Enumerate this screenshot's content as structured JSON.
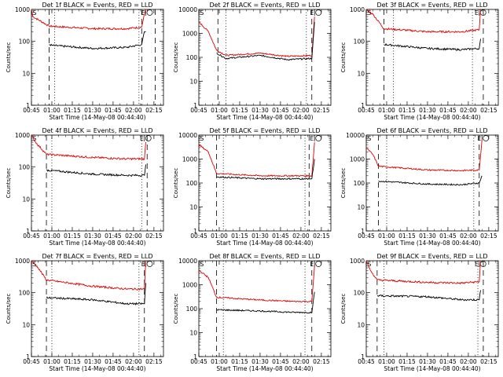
{
  "figure": {
    "ylabel": "Counts/sec",
    "xlabel": "Start Time (14-May-08 00:44:40)",
    "x_tick_labels": [
      "00:45",
      "01:00",
      "01:15",
      "01:30",
      "01:45",
      "02:00",
      "02:15"
    ],
    "y_tick_labels_small": [
      "1",
      "10",
      "100",
      "1000"
    ],
    "y_tick_labels_large": [
      "1",
      "10",
      "100",
      "1000",
      "10000"
    ],
    "marker_labels": {
      "S": "S",
      "E": "E"
    },
    "series_colors": {
      "events": "#000000",
      "lld": "#e00000"
    }
  },
  "chart_data": [
    {
      "type": "line",
      "title": "Det 1f BLACK = Events, RED = LLD",
      "xlim": [
        "00:45",
        "02:22"
      ],
      "ylim": [
        1,
        1000
      ],
      "yscale": "log",
      "dashed_x": [
        "00:58",
        "02:06",
        "02:16"
      ],
      "dotted_x": [
        "01:02",
        "02:04"
      ],
      "start_marker": "00:45",
      "end_marker": "02:09",
      "series": [
        {
          "color": "red",
          "points": [
            [
              "00:45",
              1000
            ],
            [
              "00:46",
              600
            ],
            [
              "00:58",
              300
            ],
            [
              "01:30",
              250
            ],
            [
              "01:55",
              250
            ],
            [
              "02:06",
              280
            ],
            [
              "02:08",
              700
            ],
            [
              "02:09",
              1000
            ]
          ]
        },
        {
          "color": "black",
          "points": [
            [
              "00:58",
              80
            ],
            [
              "01:00",
              75
            ],
            [
              "01:30",
              60
            ],
            [
              "01:55",
              65
            ],
            [
              "02:06",
              80
            ],
            [
              "02:08",
              200
            ],
            [
              "02:09",
              200
            ]
          ]
        }
      ]
    },
    {
      "type": "line",
      "title": "Det 2f BLACK = Events, RED = LLD",
      "xlim": [
        "00:45",
        "02:22"
      ],
      "ylim": [
        1,
        10000
      ],
      "yscale": "log",
      "dashed_x": [
        "00:59",
        "02:08"
      ],
      "dotted_x": [
        "01:05",
        "02:04"
      ],
      "start_marker": "00:45",
      "end_marker": "02:10",
      "series": [
        {
          "color": "red",
          "points": [
            [
              "00:45",
              3000
            ],
            [
              "00:52",
              1200
            ],
            [
              "00:58",
              200
            ],
            [
              "01:05",
              120
            ],
            [
              "01:30",
              150
            ],
            [
              "01:50",
              110
            ],
            [
              "02:08",
              120
            ],
            [
              "02:10",
              5000
            ]
          ]
        },
        {
          "color": "black",
          "points": [
            [
              "00:58",
              150
            ],
            [
              "01:05",
              90
            ],
            [
              "01:30",
              120
            ],
            [
              "01:50",
              80
            ],
            [
              "02:08",
              90
            ],
            [
              "02:10",
              3000
            ]
          ]
        }
      ]
    },
    {
      "type": "line",
      "title": "Det 3f BLACK = Events, RED = LLD",
      "xlim": [
        "00:45",
        "02:22"
      ],
      "ylim": [
        1,
        1000
      ],
      "yscale": "log",
      "dashed_x": [
        "00:58",
        "02:11"
      ],
      "dotted_x": [
        "01:05",
        "02:03"
      ],
      "start_marker": "00:45",
      "end_marker": "02:08",
      "series": [
        {
          "color": "red",
          "points": [
            [
              "00:45",
              1000
            ],
            [
              "00:50",
              700
            ],
            [
              "00:58",
              250
            ],
            [
              "01:30",
              200
            ],
            [
              "01:55",
              200
            ],
            [
              "02:08",
              230
            ],
            [
              "02:09",
              1000
            ]
          ]
        },
        {
          "color": "black",
          "points": [
            [
              "00:58",
              80
            ],
            [
              "01:30",
              60
            ],
            [
              "01:55",
              55
            ],
            [
              "02:08",
              60
            ],
            [
              "02:09",
              120
            ]
          ]
        }
      ]
    },
    {
      "type": "line",
      "title": "Det 4f BLACK = Events, RED = LLD",
      "xlim": [
        "00:45",
        "02:22"
      ],
      "ylim": [
        1,
        1000
      ],
      "yscale": "log",
      "dashed_x": [
        "00:56",
        "02:10"
      ],
      "dotted_x": [
        "01:00",
        "02:06"
      ],
      "start_marker": "00:45",
      "end_marker": "02:08",
      "series": [
        {
          "color": "red",
          "points": [
            [
              "00:45",
              1000
            ],
            [
              "00:48",
              600
            ],
            [
              "00:56",
              250
            ],
            [
              "01:30",
              200
            ],
            [
              "01:55",
              180
            ],
            [
              "02:08",
              180
            ],
            [
              "02:09",
              600
            ]
          ]
        },
        {
          "color": "black",
          "points": [
            [
              "00:56",
              80
            ],
            [
              "01:30",
              60
            ],
            [
              "01:55",
              55
            ],
            [
              "02:08",
              55
            ],
            [
              "02:09",
              120
            ]
          ]
        }
      ]
    },
    {
      "type": "line",
      "title": "Det 5f BLACK = Events, RED = LLD",
      "xlim": [
        "00:45",
        "02:22"
      ],
      "ylim": [
        1,
        10000
      ],
      "yscale": "log",
      "dashed_x": [
        "00:58",
        "02:06"
      ],
      "dotted_x": [
        "01:03",
        "02:03"
      ],
      "start_marker": "00:45",
      "end_marker": "02:10",
      "series": [
        {
          "color": "red",
          "points": [
            [
              "00:45",
              4000
            ],
            [
              "00:52",
              2000
            ],
            [
              "00:58",
              250
            ],
            [
              "01:30",
              200
            ],
            [
              "01:55",
              200
            ],
            [
              "02:08",
              200
            ],
            [
              "02:10",
              5000
            ]
          ]
        },
        {
          "color": "black",
          "points": [
            [
              "00:58",
              180
            ],
            [
              "01:30",
              150
            ],
            [
              "01:55",
              150
            ],
            [
              "02:08",
              150
            ],
            [
              "02:10",
              1000
            ]
          ]
        }
      ]
    },
    {
      "type": "line",
      "title": "Det 6f BLACK = Events, RED = LLD",
      "xlim": [
        "00:45",
        "02:22"
      ],
      "ylim": [
        1,
        10000
      ],
      "yscale": "log",
      "dashed_x": [
        "00:54",
        "02:08"
      ],
      "dotted_x": [
        "01:00",
        "02:04"
      ],
      "start_marker": "00:45",
      "end_marker": "02:10",
      "series": [
        {
          "color": "red",
          "points": [
            [
              "00:45",
              3000
            ],
            [
              "00:50",
              1500
            ],
            [
              "00:54",
              500
            ],
            [
              "01:30",
              350
            ],
            [
              "01:55",
              330
            ],
            [
              "02:08",
              350
            ],
            [
              "02:10",
              6000
            ]
          ]
        },
        {
          "color": "black",
          "points": [
            [
              "00:54",
              120
            ],
            [
              "01:30",
              90
            ],
            [
              "01:55",
              85
            ],
            [
              "02:08",
              100
            ],
            [
              "02:10",
              200
            ]
          ]
        }
      ]
    },
    {
      "type": "line",
      "title": "Det 7f BLACK = Events, RED = LLD",
      "xlim": [
        "00:45",
        "02:22"
      ],
      "ylim": [
        1,
        1000
      ],
      "yscale": "log",
      "dashed_x": [
        "00:56",
        "02:08"
      ],
      "dotted_x": [
        "01:00",
        "02:04"
      ],
      "start_marker": "00:45",
      "end_marker": "02:09",
      "series": [
        {
          "color": "red",
          "points": [
            [
              "00:45",
              1000
            ],
            [
              "00:50",
              600
            ],
            [
              "00:56",
              250
            ],
            [
              "01:30",
              160
            ],
            [
              "01:55",
              130
            ],
            [
              "02:08",
              130
            ],
            [
              "02:09",
              1000
            ]
          ]
        },
        {
          "color": "black",
          "points": [
            [
              "00:56",
              70
            ],
            [
              "01:30",
              60
            ],
            [
              "01:55",
              45
            ],
            [
              "02:08",
              45
            ],
            [
              "02:09",
              200
            ]
          ]
        }
      ]
    },
    {
      "type": "line",
      "title": "Det 8f BLACK = Events, RED = LLD",
      "xlim": [
        "00:45",
        "02:22"
      ],
      "ylim": [
        1,
        10000
      ],
      "yscale": "log",
      "dashed_x": [
        "00:58",
        "02:08"
      ],
      "dotted_x": [
        "01:03",
        "02:03"
      ],
      "start_marker": "00:45",
      "end_marker": "02:10",
      "series": [
        {
          "color": "red",
          "points": [
            [
              "00:45",
              4000
            ],
            [
              "00:52",
              2000
            ],
            [
              "00:58",
              300
            ],
            [
              "01:30",
              230
            ],
            [
              "01:55",
              200
            ],
            [
              "02:08",
              200
            ],
            [
              "02:10",
              6000
            ]
          ]
        },
        {
          "color": "black",
          "points": [
            [
              "00:58",
              90
            ],
            [
              "01:30",
              80
            ],
            [
              "01:55",
              70
            ],
            [
              "02:08",
              70
            ],
            [
              "02:10",
              500
            ]
          ]
        }
      ]
    },
    {
      "type": "line",
      "title": "Det 9f BLACK = Events, RED = LLD",
      "xlim": [
        "00:45",
        "02:22"
      ],
      "ylim": [
        1,
        1000
      ],
      "yscale": "log",
      "dashed_x": [
        "00:53",
        "02:11"
      ],
      "dotted_x": [
        "00:58",
        "02:07"
      ],
      "start_marker": "00:45",
      "end_marker": "02:08",
      "series": [
        {
          "color": "red",
          "points": [
            [
              "00:45",
              1000
            ],
            [
              "00:48",
              500
            ],
            [
              "00:53",
              250
            ],
            [
              "01:30",
              210
            ],
            [
              "01:55",
              200
            ],
            [
              "02:08",
              220
            ],
            [
              "02:09",
              1000
            ]
          ]
        },
        {
          "color": "black",
          "points": [
            [
              "00:53",
              80
            ],
            [
              "01:30",
              75
            ],
            [
              "01:55",
              60
            ],
            [
              "02:08",
              60
            ],
            [
              "02:09",
              120
            ]
          ]
        }
      ]
    }
  ]
}
